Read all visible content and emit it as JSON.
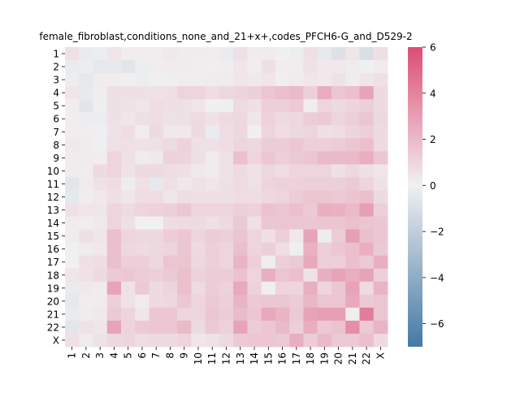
{
  "chart_data": {
    "type": "heatmap",
    "title": "female_fibroblast,conditions_none_and_21+x+,codes_PFCH6-G_and_D529-2",
    "xlabel": "",
    "ylabel": "",
    "rows": [
      "1",
      "2",
      "3",
      "4",
      "5",
      "6",
      "7",
      "8",
      "9",
      "10",
      "11",
      "12",
      "13",
      "14",
      "15",
      "16",
      "17",
      "18",
      "19",
      "20",
      "21",
      "22",
      "X"
    ],
    "cols": [
      "1",
      "2",
      "3",
      "4",
      "5",
      "6",
      "7",
      "8",
      "9",
      "10",
      "11",
      "12",
      "13",
      "14",
      "15",
      "16",
      "17",
      "18",
      "19",
      "20",
      "21",
      "22",
      "X"
    ],
    "colorbar": {
      "min": -7,
      "max": 6,
      "ticks": [
        6,
        4,
        2,
        0,
        -2,
        -4,
        -6
      ],
      "tick_labels": [
        "6",
        "4",
        "2",
        "0",
        "−2",
        "−4",
        "−6"
      ]
    },
    "colors": {
      "negative": "#4579a5",
      "neutral": "#f1f0f1",
      "positive": "#dc4d77"
    },
    "values": [
      [
        0.6,
        -0.3,
        -0.2,
        0.4,
        0.1,
        0.1,
        0.1,
        0.3,
        0.2,
        0.2,
        0.1,
        -0.3,
        0.6,
        0.2,
        0.2,
        0.0,
        -0.2,
        0.6,
        -0.4,
        -0.8,
        0.4,
        -1.0,
        0.6
      ],
      [
        -0.3,
        -0.2,
        -0.5,
        -0.4,
        -0.6,
        -0.2,
        0.1,
        0.2,
        0.2,
        0.1,
        -0.1,
        0.1,
        0.4,
        0.1,
        0.6,
        0.1,
        0.1,
        0.5,
        0.3,
        0.3,
        0.2,
        0.0,
        0.2
      ],
      [
        -0.2,
        -0.5,
        0.2,
        0.1,
        -0.1,
        -0.2,
        -0.1,
        -0.1,
        0.1,
        0.1,
        0.2,
        0.2,
        0.4,
        0.3,
        0.4,
        -0.1,
        0.2,
        0.4,
        0.3,
        0.5,
        0.2,
        0.4,
        0.6
      ],
      [
        0.4,
        -0.4,
        0.1,
        0.6,
        0.6,
        0.6,
        0.5,
        0.6,
        1.0,
        1.0,
        0.7,
        0.9,
        1.0,
        1.2,
        1.6,
        1.8,
        2.0,
        1.2,
        2.5,
        1.6,
        1.8,
        2.8,
        0.8
      ],
      [
        0.1,
        -0.6,
        -0.1,
        0.6,
        0.5,
        0.4,
        0.7,
        0.6,
        0.6,
        0.4,
        0.0,
        0.0,
        0.8,
        0.6,
        1.2,
        1.2,
        1.4,
        0.1,
        1.0,
        0.8,
        1.0,
        1.2,
        0.8
      ],
      [
        0.1,
        -0.2,
        -0.2,
        0.6,
        0.4,
        0.6,
        0.7,
        0.5,
        0.6,
        0.8,
        0.5,
        0.8,
        0.9,
        0.4,
        1.1,
        0.8,
        0.9,
        1.3,
        1.4,
        1.0,
        1.2,
        1.6,
        0.9
      ],
      [
        0.1,
        0.1,
        -0.1,
        0.5,
        0.7,
        0.1,
        0.8,
        0.3,
        0.3,
        0.8,
        -0.3,
        0.7,
        0.9,
        0.0,
        1.0,
        0.7,
        0.9,
        1.0,
        0.6,
        0.7,
        1.0,
        1.2,
        0.8
      ],
      [
        0.3,
        0.2,
        -0.1,
        0.6,
        0.6,
        0.5,
        0.6,
        0.8,
        1.1,
        0.6,
        0.6,
        0.7,
        1.0,
        0.9,
        1.3,
        1.3,
        1.5,
        1.2,
        1.2,
        1.3,
        1.6,
        1.8,
        0.8
      ],
      [
        0.2,
        0.2,
        0.1,
        1.0,
        0.6,
        0.2,
        0.3,
        1.1,
        1.0,
        0.6,
        0.2,
        0.5,
        1.8,
        1.0,
        1.5,
        1.2,
        1.4,
        1.6,
        2.0,
        2.0,
        2.0,
        2.4,
        1.5
      ],
      [
        0.2,
        0.1,
        0.8,
        1.0,
        0.5,
        0.8,
        0.8,
        0.7,
        0.6,
        0.3,
        0.2,
        0.5,
        0.8,
        0.5,
        0.9,
        0.7,
        1.0,
        1.0,
        1.0,
        0.6,
        0.9,
        0.6,
        0.4
      ],
      [
        -0.6,
        0.2,
        0.5,
        0.7,
        -0.2,
        0.6,
        -0.5,
        0.6,
        0.3,
        0.5,
        0.4,
        0.6,
        0.8,
        0.6,
        1.0,
        1.1,
        1.1,
        1.2,
        1.2,
        1.2,
        1.4,
        1.0,
        0.5
      ],
      [
        -0.5,
        0.1,
        0.3,
        0.6,
        0.4,
        0.7,
        0.7,
        0.4,
        0.7,
        0.6,
        0.6,
        0.6,
        0.7,
        0.7,
        0.9,
        1.0,
        1.3,
        1.6,
        1.6,
        1.4,
        1.6,
        1.8,
        0.8
      ],
      [
        0.6,
        0.4,
        0.4,
        1.0,
        0.8,
        1.0,
        1.1,
        1.2,
        1.5,
        1.0,
        1.0,
        1.0,
        1.2,
        1.1,
        1.7,
        1.5,
        1.8,
        1.4,
        2.4,
        2.3,
        2.0,
        3.0,
        1.2
      ],
      [
        0.2,
        0.1,
        0.3,
        1.0,
        0.6,
        0.0,
        0.0,
        0.7,
        0.8,
        0.8,
        0.6,
        0.8,
        1.4,
        0.6,
        1.5,
        1.6,
        1.5,
        1.5,
        1.6,
        1.6,
        1.8,
        1.6,
        1.5
      ],
      [
        0.2,
        0.6,
        0.4,
        1.8,
        1.0,
        0.9,
        0.9,
        1.3,
        1.5,
        1.0,
        1.3,
        1.2,
        1.6,
        1.0,
        0.6,
        1.2,
        0.3,
        2.8,
        -0.2,
        1.3,
        3.0,
        1.8,
        1.5
      ],
      [
        0.0,
        0.2,
        0.3,
        1.8,
        0.9,
        0.8,
        0.9,
        1.0,
        1.5,
        0.8,
        1.2,
        1.0,
        1.8,
        1.0,
        1.2,
        0.7,
        -0.1,
        2.3,
        1.2,
        1.5,
        1.8,
        2.4,
        1.4
      ],
      [
        0.0,
        0.6,
        0.7,
        1.8,
        1.2,
        1.2,
        0.9,
        1.6,
        1.6,
        0.9,
        1.2,
        1.0,
        2.2,
        1.2,
        0.1,
        1.2,
        1.4,
        2.6,
        1.2,
        1.2,
        1.8,
        1.4,
        2.4
      ],
      [
        0.4,
        0.5,
        0.8,
        1.4,
        1.5,
        1.3,
        1.2,
        1.4,
        1.8,
        1.1,
        1.3,
        1.3,
        1.7,
        1.0,
        2.4,
        1.6,
        1.8,
        0.5,
        2.4,
        2.8,
        2.4,
        2.8,
        1.2
      ],
      [
        -0.3,
        0.3,
        0.2,
        2.8,
        0.5,
        1.4,
        0.8,
        1.0,
        1.8,
        0.8,
        1.3,
        1.1,
        2.6,
        1.1,
        -0.1,
        1.0,
        1.0,
        2.4,
        1.0,
        1.5,
        2.8,
        0.8,
        2.2
      ],
      [
        -0.5,
        0.1,
        0.2,
        1.2,
        0.5,
        0.2,
        0.8,
        0.9,
        1.5,
        1.0,
        1.4,
        1.2,
        2.2,
        1.4,
        1.5,
        1.6,
        1.3,
        2.1,
        1.6,
        1.6,
        2.6,
        1.4,
        1.6
      ],
      [
        -0.3,
        0.2,
        0.3,
        1.4,
        1.0,
        0.4,
        1.5,
        1.5,
        1.0,
        1.0,
        1.5,
        1.3,
        1.9,
        1.5,
        2.6,
        2.2,
        1.4,
        2.8,
        3.0,
        3.0,
        0.1,
        4.2,
        1.6
      ],
      [
        -0.6,
        0.5,
        0.4,
        2.8,
        1.0,
        1.4,
        1.5,
        1.5,
        2.0,
        0.8,
        1.4,
        1.1,
        2.8,
        1.3,
        1.5,
        2.0,
        1.2,
        2.4,
        1.4,
        1.7,
        3.6,
        1.4,
        2.2
      ],
      [
        0.6,
        0.2,
        0.5,
        0.9,
        1.0,
        0.7,
        0.8,
        0.8,
        1.0,
        0.4,
        0.5,
        0.8,
        1.4,
        1.5,
        1.5,
        1.4,
        2.4,
        1.3,
        2.0,
        1.4,
        1.4,
        1.8,
        0.8
      ]
    ]
  }
}
